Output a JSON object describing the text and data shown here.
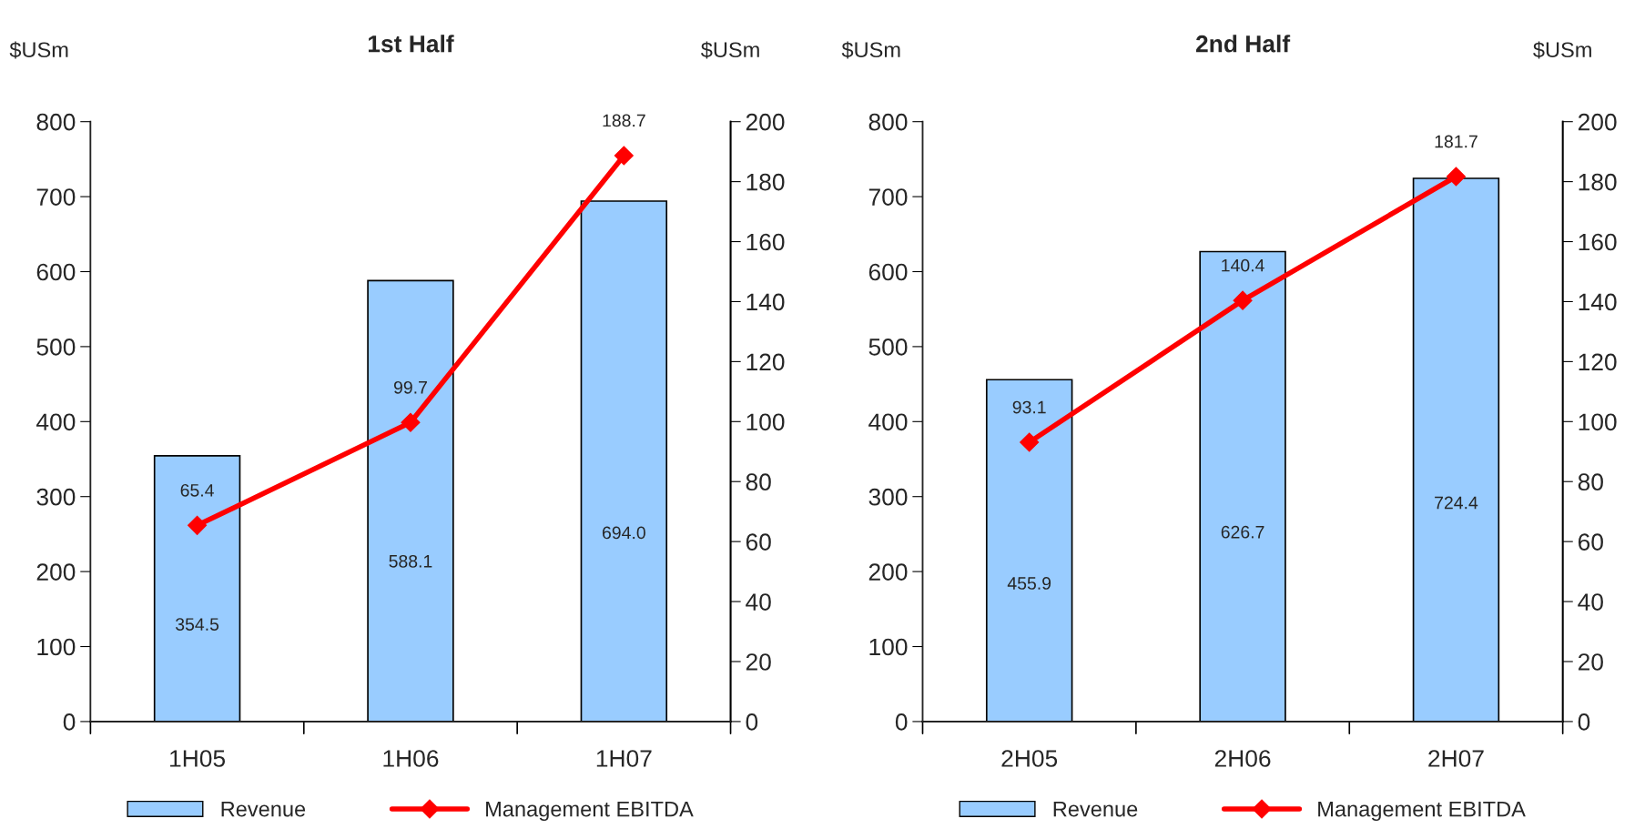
{
  "chart_data": [
    {
      "type": "bar",
      "title": "1st Half",
      "ylabel": "$USm",
      "y2label": "$USm",
      "categories": [
        "1H05",
        "1H06",
        "1H07"
      ],
      "series": [
        {
          "name": "Revenue",
          "color": "#99ccff",
          "values": [
            354.5,
            588.1,
            694.0
          ],
          "value_labels": [
            "354.5",
            "588.1",
            "694.0"
          ]
        },
        {
          "name": "Management EBITDA",
          "type": "line",
          "axis": "y2",
          "color": "#ff0000",
          "values": [
            65.4,
            99.7,
            188.7
          ],
          "value_labels": [
            "65.4",
            "99.7",
            "188.7"
          ]
        }
      ],
      "ylim": [
        0,
        800
      ],
      "yticks": [
        0,
        100,
        200,
        300,
        400,
        500,
        600,
        700,
        800
      ],
      "y2lim": [
        0,
        200
      ],
      "y2ticks": [
        0,
        20,
        40,
        60,
        80,
        100,
        120,
        140,
        160,
        180,
        200
      ],
      "marker": "diamond",
      "legend": "bottom",
      "grid": false
    },
    {
      "type": "bar",
      "title": "2nd Half",
      "ylabel": "$USm",
      "y2label": "$USm",
      "categories": [
        "2H05",
        "2H06",
        "2H07"
      ],
      "series": [
        {
          "name": "Revenue",
          "color": "#99ccff",
          "values": [
            455.9,
            626.7,
            724.4
          ],
          "value_labels": [
            "455.9",
            "626.7",
            "724.4"
          ]
        },
        {
          "name": "Management EBITDA",
          "type": "line",
          "axis": "y2",
          "color": "#ff0000",
          "values": [
            93.1,
            140.4,
            181.7
          ],
          "value_labels": [
            "93.1",
            "140.4",
            "181.7"
          ]
        }
      ],
      "ylim": [
        0,
        800
      ],
      "yticks": [
        0,
        100,
        200,
        300,
        400,
        500,
        600,
        700,
        800
      ],
      "y2lim": [
        0,
        200
      ],
      "y2ticks": [
        0,
        20,
        40,
        60,
        80,
        100,
        120,
        140,
        160,
        180,
        200
      ],
      "marker": "diamond",
      "legend": "bottom",
      "grid": false
    }
  ]
}
